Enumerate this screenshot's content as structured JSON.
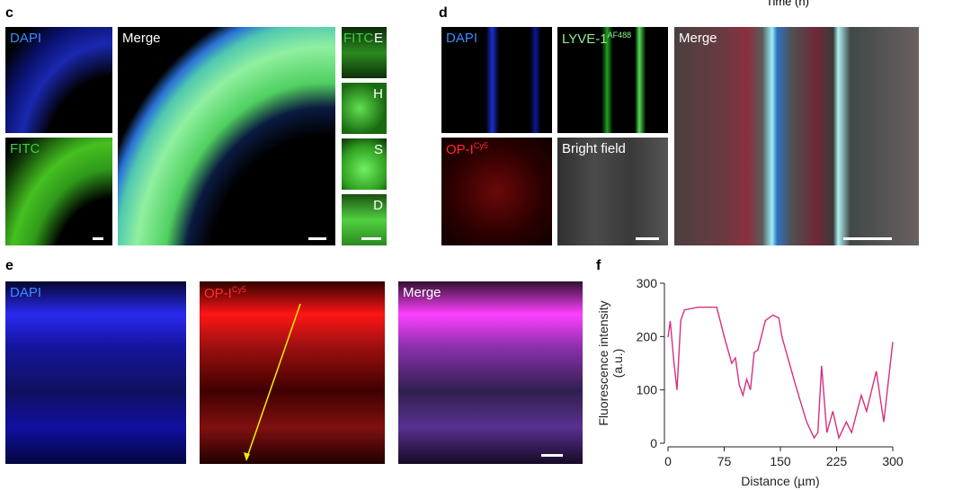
{
  "top_text": "Time (h)",
  "panel_c": {
    "label": "c",
    "images": [
      "DAPI",
      "FITC",
      "Merge"
    ],
    "insets_title": "FITC",
    "insets": [
      "E",
      "H",
      "S",
      "D"
    ]
  },
  "panel_d": {
    "label": "d",
    "dapi": "DAPI",
    "lyve": "LYVE-1",
    "lyve_sup": "AF488",
    "op": "OP-I",
    "op_sup": "Cy5",
    "bright": "Bright field",
    "merge": "Merge"
  },
  "panel_e": {
    "label": "e",
    "dapi": "DAPI",
    "op": "OP-I",
    "op_sup": "Cy5",
    "merge": "Merge"
  },
  "chart_data": {
    "type": "line",
    "label": "f",
    "xlabel": "Distance (µm)",
    "ylabel": [
      "Fluorescence intensity",
      "(a.u.)"
    ],
    "x": [
      0,
      3,
      8,
      12,
      17,
      22,
      40,
      65,
      75,
      85,
      90,
      95,
      100,
      105,
      110,
      115,
      120,
      130,
      140,
      148,
      152,
      160,
      170,
      185,
      195,
      200,
      205,
      212,
      220,
      228,
      238,
      245,
      258,
      265,
      278,
      288,
      300
    ],
    "series": [
      {
        "name": "OP-I",
        "color": "#d6307f",
        "values": [
          199,
          229,
          150,
          100,
          230,
          250,
          255,
          255,
          200,
          150,
          160,
          110,
          90,
          120,
          100,
          170,
          175,
          230,
          240,
          235,
          200,
          160,
          110,
          40,
          10,
          20,
          145,
          20,
          60,
          10,
          40,
          20,
          90,
          60,
          135,
          40,
          190
        ]
      }
    ],
    "xlim": [
      0,
      300
    ],
    "ylim": [
      0,
      300
    ],
    "xticks": [
      0,
      75,
      150,
      225,
      300
    ],
    "yticks": [
      0,
      100,
      200,
      300
    ]
  }
}
